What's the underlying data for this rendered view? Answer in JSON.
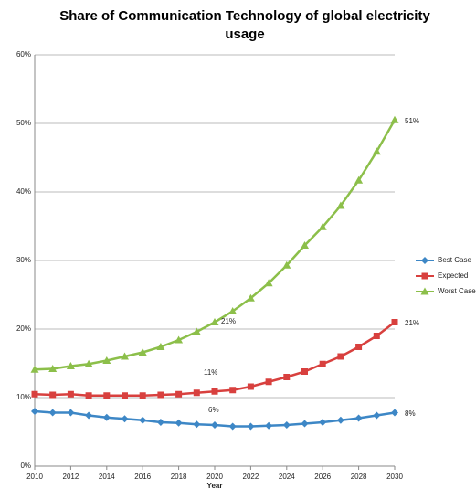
{
  "chart_data": {
    "type": "line",
    "title": "Share of Communication Technology of global electricity usage",
    "x_label": "Year",
    "x": [
      2010,
      2011,
      2012,
      2013,
      2014,
      2015,
      2016,
      2017,
      2018,
      2019,
      2020,
      2021,
      2022,
      2023,
      2024,
      2025,
      2026,
      2027,
      2028,
      2029,
      2030
    ],
    "xlim": [
      2010,
      2030
    ],
    "xticks": [
      2010,
      2012,
      2014,
      2016,
      2018,
      2020,
      2022,
      2024,
      2026,
      2028,
      2030
    ],
    "ylim": [
      0,
      60
    ],
    "yticks": [
      {
        "value": 0,
        "label": "0%"
      },
      {
        "value": 10,
        "label": "10%"
      },
      {
        "value": 20,
        "label": "20%"
      },
      {
        "value": 30,
        "label": "30%"
      },
      {
        "value": 40,
        "label": "40%"
      },
      {
        "value": 50,
        "label": "50%"
      },
      {
        "value": 60,
        "label": "60%"
      }
    ],
    "grid": true,
    "legend": "right",
    "series": [
      {
        "name": "Best Case",
        "color": "#3d87c6",
        "marker": "diamond",
        "values": [
          8.0,
          7.8,
          7.8,
          7.4,
          7.1,
          6.9,
          6.7,
          6.4,
          6.3,
          6.1,
          6.0,
          5.8,
          5.8,
          5.9,
          6.0,
          6.2,
          6.4,
          6.7,
          7.0,
          7.4,
          7.8
        ]
      },
      {
        "name": "Expected",
        "color": "#d8403e",
        "marker": "square",
        "values": [
          10.5,
          10.4,
          10.5,
          10.3,
          10.3,
          10.3,
          10.3,
          10.4,
          10.5,
          10.7,
          10.9,
          11.1,
          11.6,
          12.3,
          13.0,
          13.8,
          14.9,
          16.0,
          17.4,
          19.0,
          21.0
        ]
      },
      {
        "name": "Worst Case",
        "color": "#8cbf4a",
        "marker": "triangle",
        "values": [
          14.1,
          14.2,
          14.6,
          14.9,
          15.4,
          16.0,
          16.6,
          17.4,
          18.4,
          19.6,
          21.0,
          22.6,
          24.5,
          26.7,
          29.3,
          32.2,
          34.9,
          38.0,
          41.7,
          45.9,
          50.5
        ]
      }
    ],
    "annotations": [
      "21%",
      "11%",
      "6%",
      "51%",
      "21%",
      "8%"
    ]
  }
}
